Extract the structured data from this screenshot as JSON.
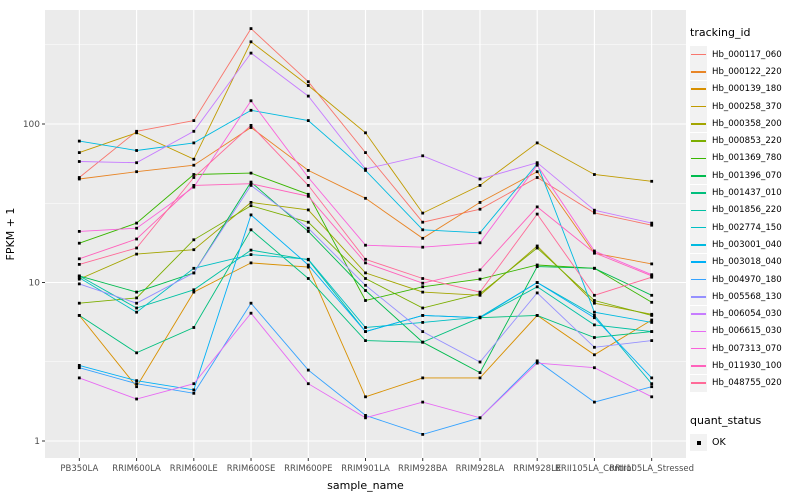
{
  "chart_data": {
    "type": "line",
    "title": "",
    "xlabel": "sample_name",
    "ylabel": "FPKM + 1",
    "y_scale": "log10",
    "y_ticks": [
      1,
      10,
      100
    ],
    "y_minor_ticks": [
      3.162,
      31.62,
      316.2
    ],
    "ylim": [
      1,
      450
    ],
    "grid": "white major+minor on gray panel",
    "legend_position": "right",
    "point_marker": "small black square",
    "categories": [
      "PB350LA",
      "RRIM600LA",
      "RRIM600LE",
      "RRIM600SE",
      "RRIM600PE",
      "RRIM901LA",
      "RRIM928BA",
      "RRIM928LA",
      "RRIM928LE",
      "RRII105LA_Control",
      "RRII105LA_Stressed"
    ],
    "series": [
      {
        "name": "Hb_000117_060",
        "color": "#F8766D",
        "values": [
          46,
          90,
          105,
          400,
          185,
          66,
          24,
          29,
          46,
          27.5,
          23
        ]
      },
      {
        "name": "Hb_000122_220",
        "color": "#E88526",
        "values": [
          45,
          50,
          55,
          95,
          51,
          34,
          19,
          32,
          50,
          15.3,
          13.1
        ]
      },
      {
        "name": "Hb_000139_180",
        "color": "#D89000",
        "values": [
          6.2,
          2.2,
          8.7,
          13.3,
          12.5,
          1.9,
          2.5,
          2.5,
          6.2,
          3.5,
          5.8
        ]
      },
      {
        "name": "Hb_000258_370",
        "color": "#C09B00",
        "values": [
          66,
          88,
          60,
          330,
          175,
          88,
          27.4,
          41,
          76,
          48,
          43.5
        ]
      },
      {
        "name": "Hb_000358_200",
        "color": "#A3A500",
        "values": [
          10.5,
          15.1,
          16.1,
          32,
          28.7,
          11.5,
          8.7,
          8.3,
          17,
          7.4,
          6.3
        ]
      },
      {
        "name": "Hb_000853_220",
        "color": "#7CAE00",
        "values": [
          7.4,
          8.0,
          18.6,
          30.5,
          24,
          10.6,
          6.9,
          8.5,
          16.5,
          7.7,
          6.2
        ]
      },
      {
        "name": "Hb_001369_780",
        "color": "#39B600",
        "values": [
          17.7,
          23.7,
          48,
          49,
          36,
          7.7,
          9.4,
          10.5,
          12.9,
          12.3,
          7.5
        ]
      },
      {
        "name": "Hb_001396_070",
        "color": "#00BB4E",
        "values": [
          11,
          8.7,
          11.5,
          43,
          21,
          8.9,
          4.2,
          2.7,
          12.6,
          12.3,
          8.3
        ]
      },
      {
        "name": "Hb_001437_010",
        "color": "#00BF7D",
        "values": [
          6.2,
          3.6,
          5.2,
          21.5,
          10.6,
          4.3,
          4.2,
          6.0,
          6.2,
          4.5,
          4.9
        ]
      },
      {
        "name": "Hb_001856_220",
        "color": "#00C1A3",
        "values": [
          11,
          6.9,
          9.0,
          16,
          13.9,
          4.9,
          6.2,
          6.0,
          9.4,
          5.4,
          4.9
        ]
      },
      {
        "name": "Hb_002774_150",
        "color": "#00BFC4",
        "values": [
          10.7,
          6.5,
          12.3,
          15,
          14,
          5.2,
          5.6,
          6.05,
          10,
          6.2,
          2.3
        ]
      },
      {
        "name": "Hb_003001_040",
        "color": "#00BAE0",
        "values": [
          78,
          68,
          76,
          122,
          105,
          51,
          21.5,
          20.6,
          56,
          6.5,
          5.6
        ]
      },
      {
        "name": "Hb_003018_040",
        "color": "#00B0F6",
        "values": [
          3.0,
          2.4,
          2.1,
          26.7,
          12.9,
          4.9,
          6.2,
          6.0,
          10,
          6.0,
          2.5
        ]
      },
      {
        "name": "Hb_004970_180",
        "color": "#35A2FF",
        "values": [
          2.9,
          2.3,
          2.0,
          7.4,
          2.8,
          1.45,
          1.1,
          1.4,
          3.2,
          1.76,
          2.2
        ]
      },
      {
        "name": "Hb_005568_130",
        "color": "#9590FF",
        "values": [
          9.8,
          7.4,
          11.5,
          41,
          22,
          9.6,
          4.9,
          3.15,
          8.6,
          3.9,
          4.3
        ]
      },
      {
        "name": "Hb_006054_030",
        "color": "#C77CFF",
        "values": [
          58,
          57,
          90,
          280,
          150,
          52,
          63,
          45,
          57,
          28.6,
          23.7
        ]
      },
      {
        "name": "Hb_006615_030",
        "color": "#E76BF3",
        "values": [
          2.5,
          1.84,
          2.3,
          6.4,
          2.3,
          1.4,
          1.76,
          1.4,
          3.1,
          2.9,
          1.9
        ]
      },
      {
        "name": "Hb_007313_070",
        "color": "#FA62DB",
        "values": [
          21,
          22,
          40,
          140,
          46,
          17.2,
          16.7,
          17.8,
          55,
          15.8,
          11.2
        ]
      },
      {
        "name": "Hb_011930_100",
        "color": "#FF62BC",
        "values": [
          14.1,
          18.8,
          41,
          42,
          35,
          13.3,
          9.9,
          12.0,
          30,
          15.4,
          11.0
        ]
      },
      {
        "name": "Hb_048755_020",
        "color": "#FF6A98",
        "values": [
          13,
          16.5,
          46,
          98,
          41,
          14,
          10.6,
          8.7,
          27,
          8.3,
          10.8
        ]
      }
    ]
  },
  "legend": {
    "tracking_title": "tracking_id",
    "status_title": "quant_status",
    "status_items": [
      {
        "label": "OK"
      }
    ]
  },
  "colors": {
    "panel_bg": "#EBEBEB",
    "grid": "#FFFFFF",
    "point": "#000000",
    "tick_label": "#4D4D4D",
    "axis_title": "#000000",
    "tick_mark": "#333333"
  }
}
